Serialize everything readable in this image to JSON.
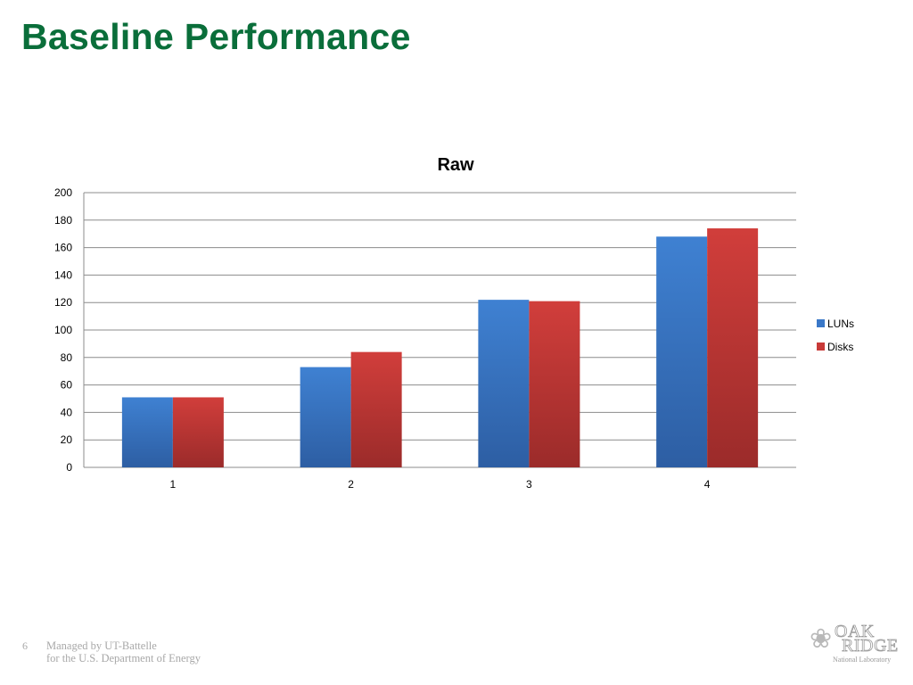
{
  "slide": {
    "title": "Baseline Performance",
    "number": "6",
    "footer_line1": "Managed by UT-Battelle",
    "footer_line2": "for the U.S. Department of Energy"
  },
  "logo": {
    "line1": "OAK",
    "line2": "RIDGE",
    "line3": "National Laboratory",
    "icon": "tree-icon"
  },
  "colors": {
    "title": "#0a6e3a",
    "luns": "#3a78c8",
    "disks": "#c83a38"
  },
  "chart_data": {
    "type": "bar",
    "title": "Raw",
    "xlabel": "",
    "ylabel": "",
    "categories": [
      "1",
      "2",
      "3",
      "4"
    ],
    "series": [
      {
        "name": "LUNs",
        "values": [
          51,
          73,
          122,
          168
        ]
      },
      {
        "name": "Disks",
        "values": [
          51,
          84,
          121,
          174
        ]
      }
    ],
    "ylim": [
      0,
      200
    ],
    "yticks": [
      "0",
      "20",
      "40",
      "60",
      "80",
      "100",
      "120",
      "140",
      "160",
      "180",
      "200"
    ],
    "grid": true,
    "legend_position": "right"
  }
}
